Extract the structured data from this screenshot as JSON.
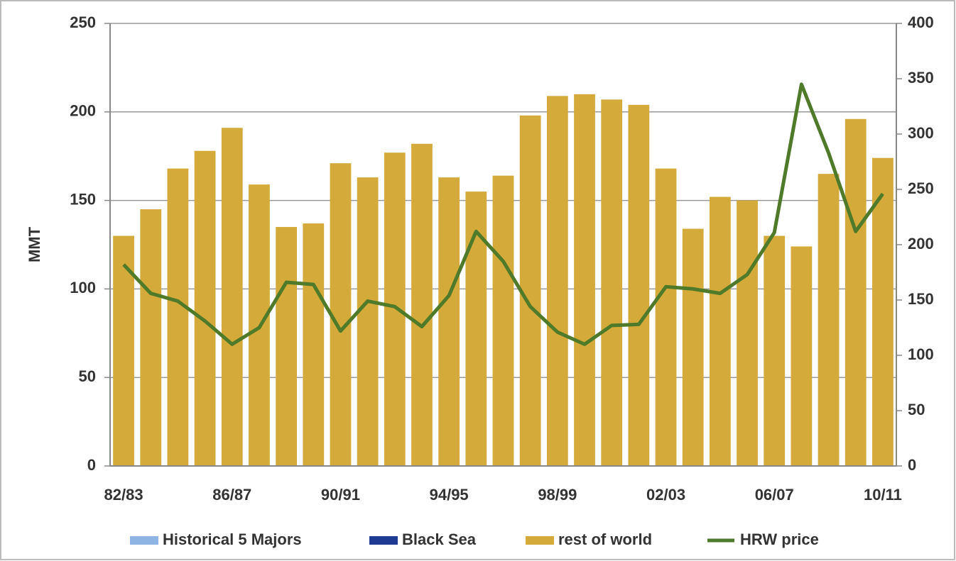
{
  "chart_data": {
    "type": "bar",
    "y_label": "MMT",
    "categories": [
      "82/83",
      null,
      null,
      null,
      "86/87",
      null,
      null,
      null,
      "90/91",
      null,
      null,
      null,
      "94/95",
      null,
      null,
      null,
      "98/99",
      null,
      null,
      null,
      "02/03",
      null,
      null,
      null,
      "06/07",
      null,
      null,
      null,
      "10/11"
    ],
    "series": [
      {
        "name": "Historical 5 Majors",
        "color": "#8db4e2",
        "type": "bar",
        "values": [
          null,
          null,
          null,
          null,
          null,
          null,
          null,
          null,
          null,
          null,
          null,
          null,
          null,
          null,
          null,
          null,
          null,
          null,
          null,
          null,
          null,
          null,
          null,
          null,
          null,
          null,
          null,
          null,
          null
        ]
      },
      {
        "name": "Black Sea",
        "color": "#1f3a93",
        "type": "bar",
        "values": [
          null,
          null,
          null,
          null,
          null,
          null,
          null,
          null,
          null,
          null,
          null,
          null,
          null,
          null,
          null,
          null,
          null,
          null,
          null,
          null,
          null,
          null,
          null,
          null,
          null,
          null,
          null,
          null,
          null
        ]
      },
      {
        "name": "rest of world",
        "color": "#d4aa3a",
        "type": "bar",
        "values": [
          130,
          145,
          168,
          178,
          191,
          159,
          135,
          137,
          171,
          163,
          177,
          182,
          163,
          155,
          164,
          198,
          209,
          210,
          207,
          204,
          168,
          134,
          152,
          150,
          130,
          124,
          165,
          196,
          174
        ]
      },
      {
        "name": "HRW price",
        "color": "#4e7a2a",
        "type": "line",
        "axis": "y2",
        "values": [
          182,
          156,
          149,
          131,
          110,
          125,
          166,
          164,
          122,
          149,
          144,
          126,
          154,
          212,
          185,
          144,
          121,
          110,
          127,
          128,
          162,
          160,
          156,
          173,
          211,
          345,
          283,
          212,
          246
        ]
      }
    ],
    "ylim": [
      0,
      250
    ],
    "yticks": [
      0,
      50,
      100,
      150,
      200,
      250
    ],
    "y2lim": [
      0,
      400
    ],
    "y2ticks": [
      0,
      50,
      100,
      150,
      200,
      250,
      300,
      350,
      400
    ],
    "grid": true,
    "legend": "bottom"
  }
}
